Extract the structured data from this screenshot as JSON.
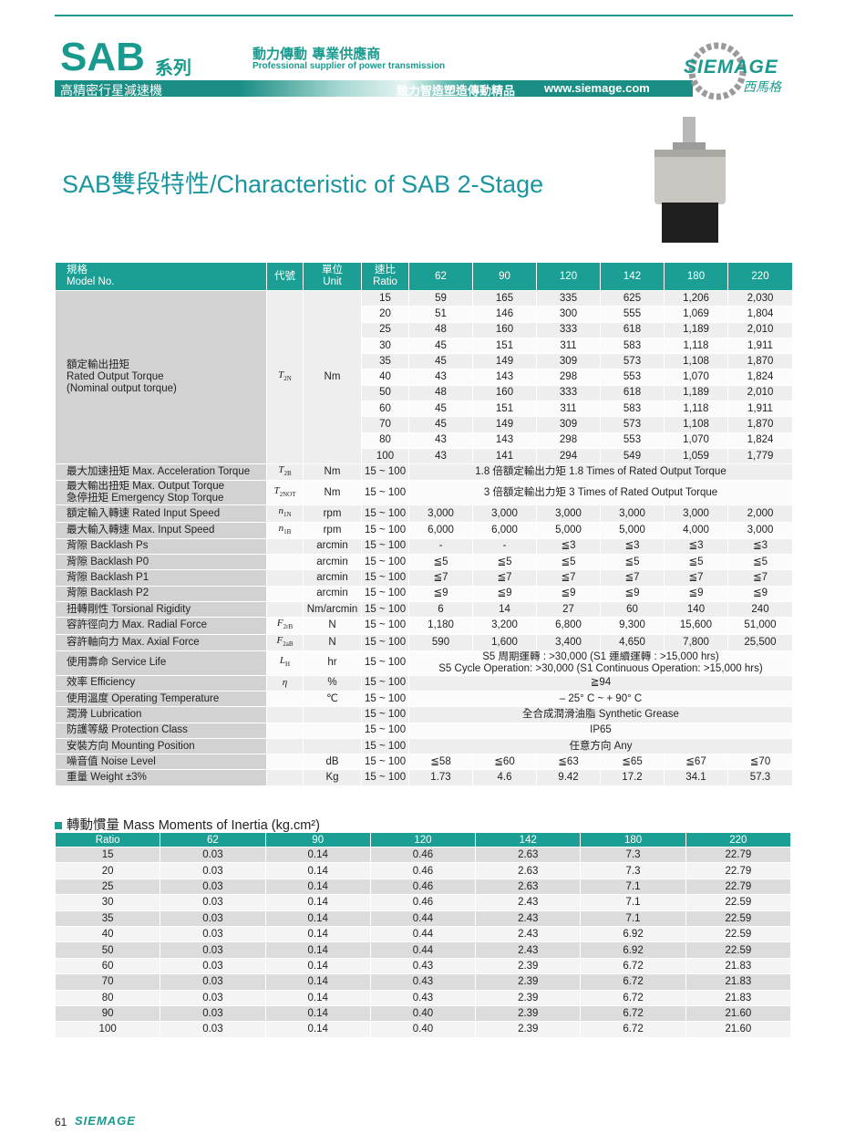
{
  "header": {
    "series": "SAB",
    "series_suffix": "系列",
    "tagline_zh": "動力傳動 專業供應商",
    "tagline_en": "Professional supplier of power transmission",
    "subtitle": "高精密行星減速機",
    "slogan": "致力智造塑造傳動精品",
    "url": "www.siemage.com",
    "logo": "SIEMAGE",
    "logo_zh": "西馬格"
  },
  "title": "SAB雙段特性/Characteristic of SAB 2-Stage",
  "spec_table": {
    "header": [
      [
        "規格",
        "Model No."
      ],
      [
        "代號"
      ],
      [
        "單位",
        "Unit"
      ],
      [
        "速比",
        "Ratio"
      ],
      [
        "62"
      ],
      [
        "90"
      ],
      [
        "120"
      ],
      [
        "142"
      ],
      [
        "180"
      ],
      [
        "220"
      ]
    ],
    "rated_torque": {
      "label": [
        "額定輸出扭矩",
        "Rated Output Torque",
        "(Nominal output torque)"
      ],
      "code": {
        "base": "T",
        "sub": "2N"
      },
      "unit": "Nm",
      "rows": [
        {
          "ratio": "15",
          "values": [
            "59",
            "165",
            "335",
            "625",
            "1,206",
            "2,030"
          ]
        },
        {
          "ratio": "20",
          "values": [
            "51",
            "146",
            "300",
            "555",
            "1,069",
            "1,804"
          ]
        },
        {
          "ratio": "25",
          "values": [
            "48",
            "160",
            "333",
            "618",
            "1,189",
            "2,010"
          ]
        },
        {
          "ratio": "30",
          "values": [
            "45",
            "151",
            "311",
            "583",
            "1,118",
            "1,911"
          ]
        },
        {
          "ratio": "35",
          "values": [
            "45",
            "149",
            "309",
            "573",
            "1,108",
            "1,870"
          ]
        },
        {
          "ratio": "40",
          "values": [
            "43",
            "143",
            "298",
            "553",
            "1,070",
            "1,824"
          ]
        },
        {
          "ratio": "50",
          "values": [
            "48",
            "160",
            "333",
            "618",
            "1,189",
            "2,010"
          ]
        },
        {
          "ratio": "60",
          "values": [
            "45",
            "151",
            "311",
            "583",
            "1,118",
            "1,911"
          ]
        },
        {
          "ratio": "70",
          "values": [
            "45",
            "149",
            "309",
            "573",
            "1,108",
            "1,870"
          ]
        },
        {
          "ratio": "80",
          "values": [
            "43",
            "143",
            "298",
            "553",
            "1,070",
            "1,824"
          ]
        },
        {
          "ratio": "100",
          "values": [
            "43",
            "141",
            "294",
            "549",
            "1,059",
            "1,779"
          ]
        }
      ]
    },
    "rows": [
      {
        "label": "最大加速扭矩 Max. Acceleration Torque",
        "code": {
          "base": "T",
          "sub": "2B"
        },
        "unit": "Nm",
        "ratio": "15 ~ 100",
        "span": "1.8 倍額定輸出力矩  1.8 Times of Rated Output Torque"
      },
      {
        "label": [
          "最大輸出扭矩  Max. Output Torque",
          "急停扭矩  Emergency Stop Torque"
        ],
        "code": {
          "base": "T",
          "sub": "2NOT"
        },
        "unit": "Nm",
        "ratio": "15 ~ 100",
        "span": "3 倍額定輸出力矩  3 Times of Rated Output Torque"
      },
      {
        "label": "額定輸入轉速  Rated Input Speed",
        "code": {
          "base": "n",
          "sub": "1N"
        },
        "unit": "rpm",
        "ratio": "15 ~ 100",
        "values": [
          "3,000",
          "3,000",
          "3,000",
          "3,000",
          "3,000",
          "2,000"
        ]
      },
      {
        "label": "最大輸入轉速  Max. Input Speed",
        "code": {
          "base": "n",
          "sub": "1B"
        },
        "unit": "rpm",
        "ratio": "15 ~ 100",
        "values": [
          "6,000",
          "6,000",
          "5,000",
          "5,000",
          "4,000",
          "3,000"
        ]
      },
      {
        "label": "背隙  Backlash Ps",
        "unit": "arcmin",
        "ratio": "15 ~ 100",
        "values": [
          "-",
          "-",
          "≦3",
          "≦3",
          "≦3",
          "≦3"
        ]
      },
      {
        "label": "背隙  Backlash P0",
        "unit": "arcmin",
        "ratio": "15 ~ 100",
        "values": [
          "≦5",
          "≦5",
          "≦5",
          "≦5",
          "≦5",
          "≦5"
        ]
      },
      {
        "label": "背隙  Backlash P1",
        "unit": "arcmin",
        "ratio": "15 ~ 100",
        "values": [
          "≦7",
          "≦7",
          "≦7",
          "≦7",
          "≦7",
          "≦7"
        ]
      },
      {
        "label": "背隙  Backlash P2",
        "unit": "arcmin",
        "ratio": "15 ~ 100",
        "values": [
          "≦9",
          "≦9",
          "≦9",
          "≦9",
          "≦9",
          "≦9"
        ]
      },
      {
        "label": "扭轉剛性  Torsional Rigidity",
        "unit": "Nm/arcmin",
        "ratio": "15 ~ 100",
        "values": [
          "6",
          "14",
          "27",
          "60",
          "140",
          "240"
        ]
      },
      {
        "label": "容許徑向力  Max. Radial Force",
        "code": {
          "base": "F",
          "sub": "2rB"
        },
        "unit": "N",
        "ratio": "15 ~ 100",
        "values": [
          "1,180",
          "3,200",
          "6,800",
          "9,300",
          "15,600",
          "51,000"
        ]
      },
      {
        "label": "容許軸向力  Max. Axial Force",
        "code": {
          "base": "F",
          "sub": "2aB"
        },
        "unit": "N",
        "ratio": "15 ~ 100",
        "values": [
          "590",
          "1,600",
          "3,400",
          "4,650",
          "7,800",
          "25,500"
        ]
      },
      {
        "label": "使用壽命  Service Life",
        "code": {
          "base": "L",
          "sub": "H"
        },
        "unit": "hr",
        "ratio": "15 ~ 100",
        "span": [
          "S5 周期運轉 : >30,000 (S1 連續運轉 : >15,000 hrs)",
          "S5 Cycle Operation: >30,000 (S1 Continuous Operation: >15,000 hrs)"
        ]
      },
      {
        "label": "效率  Efficiency",
        "code": {
          "base": "η"
        },
        "unit": "%",
        "ratio": "15 ~ 100",
        "span": "≧94"
      },
      {
        "label": "使用溫度  Operating Temperature",
        "unit": "℃",
        "ratio": "15 ~ 100",
        "span": "– 25° C  ~ + 90° C"
      },
      {
        "label": "潤滑  Lubrication",
        "ratio": "15 ~ 100",
        "span": "全合成潤滑油脂  Synthetic Grease"
      },
      {
        "label": "防護等級  Protection Class",
        "ratio": "15 ~ 100",
        "span": "IP65"
      },
      {
        "label": "安裝方向  Mounting Position",
        "ratio": "15 ~ 100",
        "span": "任意方向  Any"
      },
      {
        "label": "噪音值  Noise Level",
        "unit": "dB",
        "ratio": "15 ~ 100",
        "values": [
          "≦58",
          "≦60",
          "≦63",
          "≦65",
          "≦67",
          "≦70"
        ]
      },
      {
        "label": "重量  Weight  ±3%",
        "unit": "Kg",
        "ratio": "15 ~ 100",
        "values": [
          "1.73",
          "4.6",
          "9.42",
          "17.2",
          "34.1",
          "57.3"
        ]
      }
    ]
  },
  "inertia": {
    "title": "轉動慣量 Mass Moments of Inertia (kg.cm²)",
    "header": [
      "Ratio",
      "62",
      "90",
      "120",
      "142",
      "180",
      "220"
    ],
    "rows": [
      [
        "15",
        "0.03",
        "0.14",
        "0.46",
        "2.63",
        "7.3",
        "22.79"
      ],
      [
        "20",
        "0.03",
        "0.14",
        "0.46",
        "2.63",
        "7.3",
        "22.79"
      ],
      [
        "25",
        "0.03",
        "0.14",
        "0.46",
        "2.63",
        "7.1",
        "22.79"
      ],
      [
        "30",
        "0.03",
        "0.14",
        "0.46",
        "2.43",
        "7.1",
        "22.59"
      ],
      [
        "35",
        "0.03",
        "0.14",
        "0.44",
        "2.43",
        "7.1",
        "22.59"
      ],
      [
        "40",
        "0.03",
        "0.14",
        "0.44",
        "2.43",
        "6.92",
        "22.59"
      ],
      [
        "50",
        "0.03",
        "0.14",
        "0.44",
        "2.43",
        "6.92",
        "22.59"
      ],
      [
        "60",
        "0.03",
        "0.14",
        "0.43",
        "2.39",
        "6.72",
        "21.83"
      ],
      [
        "70",
        "0.03",
        "0.14",
        "0.43",
        "2.39",
        "6.72",
        "21.83"
      ],
      [
        "80",
        "0.03",
        "0.14",
        "0.43",
        "2.39",
        "6.72",
        "21.83"
      ],
      [
        "90",
        "0.03",
        "0.14",
        "0.40",
        "2.39",
        "6.72",
        "21.60"
      ],
      [
        "100",
        "0.03",
        "0.14",
        "0.40",
        "2.39",
        "6.72",
        "21.60"
      ]
    ]
  },
  "footer": {
    "page": "61",
    "brand": "SIEMAGE"
  }
}
